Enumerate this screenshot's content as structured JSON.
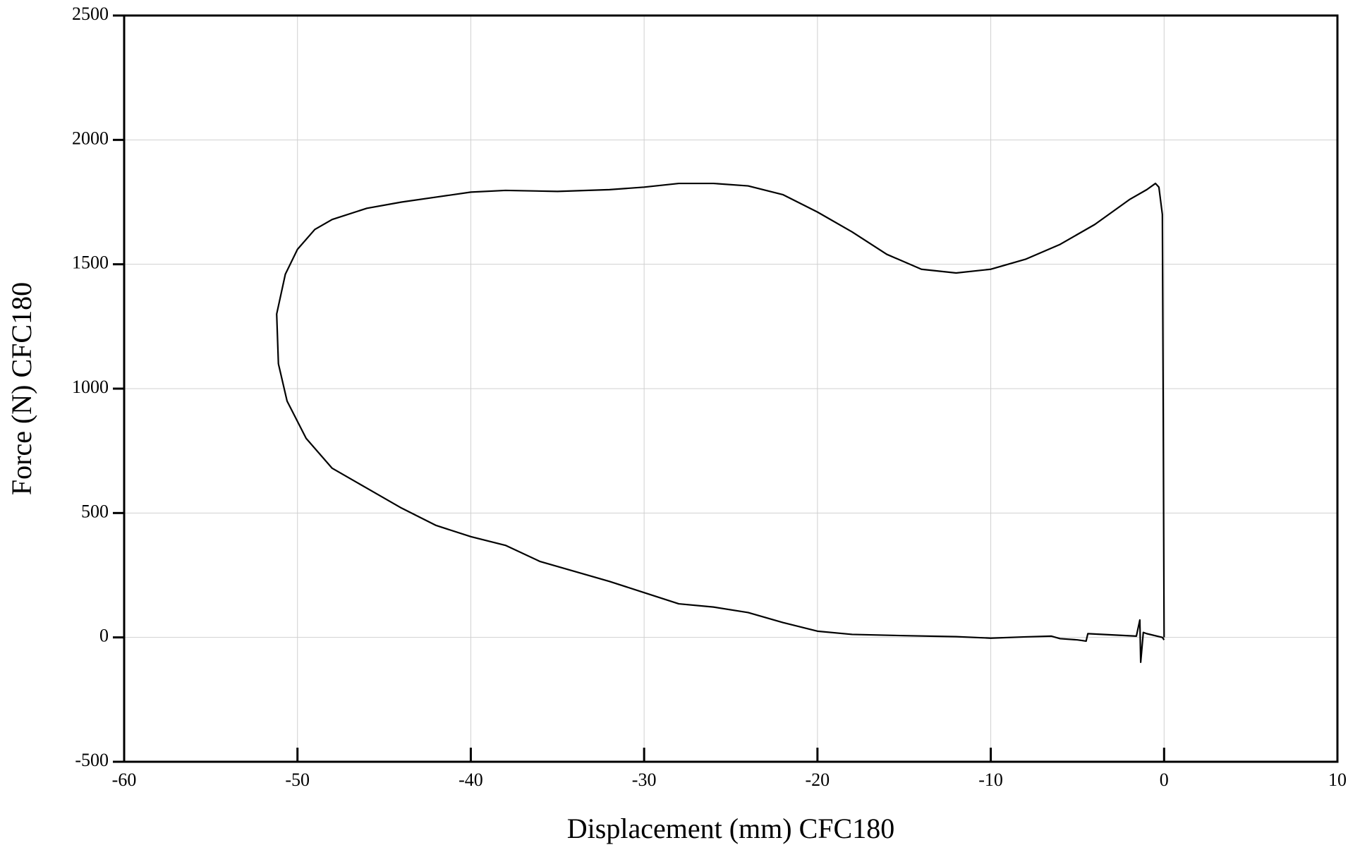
{
  "chart_data": {
    "type": "line",
    "xlabel": "Displacement (mm) CFC180",
    "ylabel": "Force (N) CFC180",
    "color": "#000000",
    "grid": true,
    "xlim": [
      -60,
      10
    ],
    "xticks": [
      -60,
      -50,
      -40,
      -30,
      -20,
      -10,
      0,
      10
    ],
    "ylim": [
      -500,
      2500
    ],
    "yticks": [
      -500,
      0,
      500,
      1000,
      1500,
      2000,
      2500
    ],
    "x": [
      0,
      -0.05,
      -0.1,
      -0.3,
      -0.5,
      -1,
      -2,
      -4,
      -6,
      -8,
      -10,
      -12,
      -14,
      -16,
      -18,
      -20,
      -22,
      -24,
      -26,
      -28,
      -30,
      -32,
      -35,
      -38,
      -40,
      -42,
      -44,
      -46,
      -48,
      -49,
      -50,
      -50.7,
      -51.2,
      -51.1,
      -50.6,
      -49.5,
      -48,
      -46,
      -44,
      -42,
      -40,
      -38,
      -36,
      -34,
      -32,
      -30,
      -28,
      -26,
      -24,
      -22,
      -20,
      -18,
      -15,
      -12,
      -10,
      -8,
      -6.5,
      -6,
      -5,
      -4.5,
      -4.4,
      -3,
      -1.6,
      -1.4,
      -1.35,
      -1.2,
      -1,
      -0.1,
      0
    ],
    "values": [
      0,
      900,
      1700,
      1810,
      1825,
      1800,
      1760,
      1660,
      1580,
      1520,
      1480,
      1465,
      1480,
      1540,
      1630,
      1710,
      1780,
      1815,
      1825,
      1825,
      1810,
      1800,
      1793,
      1797,
      1790,
      1770,
      1750,
      1725,
      1680,
      1640,
      1560,
      1460,
      1300,
      1100,
      950,
      800,
      680,
      600,
      520,
      450,
      405,
      370,
      305,
      265,
      225,
      180,
      135,
      122,
      100,
      60,
      25,
      12,
      7,
      3,
      -3,
      2,
      5,
      -5,
      -10,
      -15,
      15,
      10,
      5,
      70,
      -100,
      20,
      15,
      0,
      -10
    ]
  }
}
